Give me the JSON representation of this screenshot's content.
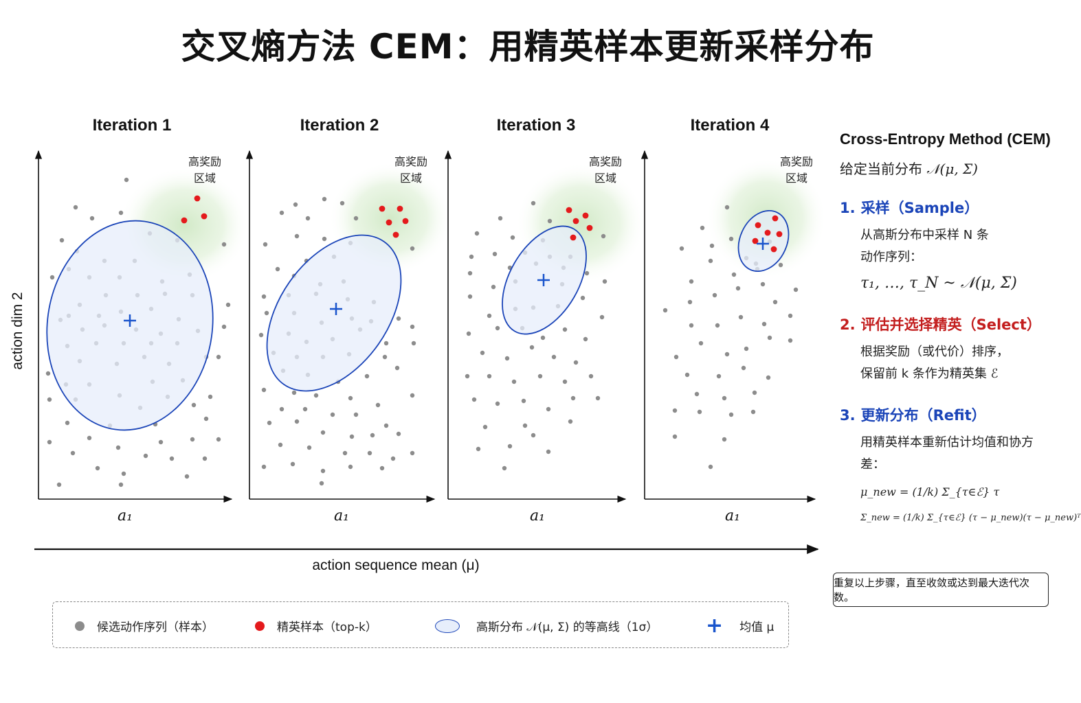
{
  "title": "交叉熵方法 CEM：用精英样本更新采样分布",
  "panels": [
    {
      "iteration": "Iteration 1",
      "xlabel": "a₁",
      "region": [
        "高奖励",
        "区域"
      ]
    },
    {
      "iteration": "Iteration 2",
      "xlabel": "a₁",
      "region": [
        "高奖励",
        "区域"
      ]
    },
    {
      "iteration": "Iteration 3",
      "xlabel": "a₁",
      "region": [
        "高奖励",
        "区域"
      ]
    },
    {
      "iteration": "Iteration 4",
      "xlabel": "a₁",
      "region": [
        "高奖励",
        "区域"
      ]
    }
  ],
  "ylabel": "action dim 2",
  "bottom_axis_label": "action sequence mean (μ)",
  "right_panel": {
    "title": "Cross-Entropy Method (CEM)",
    "subtitle_text": "给定当前分布",
    "subtitle_math": "𝒩(μ, Σ)",
    "steps": [
      {
        "num": "1.",
        "label": "采样（Sample）",
        "lines": [
          "从高斯分布中采样 N 条",
          "动作序列："
        ],
        "formula": "τ₁, …, τ_N ~ 𝒩(μ, Σ)"
      },
      {
        "num": "2.",
        "label": "评估并选择精英（Select）",
        "lines": [
          "根据奖励（或代价）排序，",
          "保留前 k 条作为精英集 ℰ"
        ]
      },
      {
        "num": "3.",
        "label": "更新分布（Refit）",
        "lines": [
          "用精英样本重新估计均值和协方差："
        ],
        "formula_mu": "μ_new = (1/k) Σ_{τ∈ℰ} τ",
        "formula_sigma": "Σ_new = (1/k) Σ_{τ∈ℰ} (τ − μ_new)(τ − μ_new)ᵀ"
      }
    ]
  },
  "note": "重复以上步骤，直至收敛或达到最大迭代次数。",
  "legend": {
    "candidate": "候选动作序列（样本）",
    "elite": "精英样本（top-k）",
    "gaussian": "高斯分布 𝒩(μ, Σ) 的等高线（1σ）",
    "mean": "均值 μ"
  },
  "colors": {
    "candidate": "#8c8c8c",
    "elite": "#e41a1c",
    "contour": "#1a44b8",
    "ellipse_fill": "#e7eefb",
    "reward_region": "#cfe8c4",
    "mean": "#1a55cc"
  }
}
